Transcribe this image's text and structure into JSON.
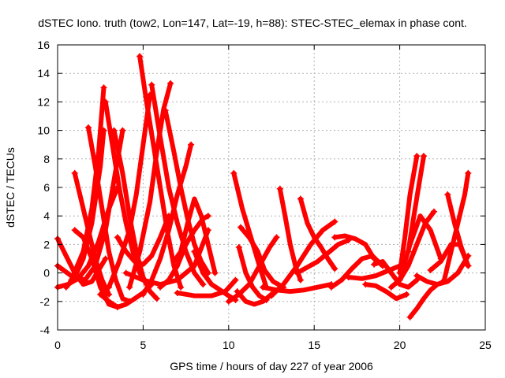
{
  "chart_data": {
    "type": "scatter",
    "title": "dSTEC Iono. truth (tow2, Lon=147, Lat=-19, h=88): STEC-STEC_elemax in phase cont.",
    "xlabel": "GPS time / hours of day 227 of year 2006",
    "ylabel": "dSTEC  / TECUs",
    "xlim": [
      0,
      25
    ],
    "ylim": [
      -4,
      16
    ],
    "xticks": [
      0,
      5,
      10,
      15,
      20,
      25
    ],
    "yticks": [
      -4,
      -2,
      0,
      2,
      4,
      6,
      8,
      10,
      12,
      14,
      16
    ],
    "grid": true,
    "marker": "plus",
    "color": "#ff0000",
    "series": [
      {
        "x": [
          0.0,
          0.5,
          1.0,
          1.5,
          2.0,
          2.5,
          2.8
        ],
        "y": [
          2.4,
          1.2,
          0.0,
          -0.8,
          -0.6,
          0.4,
          1.0
        ]
      },
      {
        "x": [
          0.0,
          0.6,
          1.2,
          1.8,
          2.4,
          3.0,
          3.5
        ],
        "y": [
          -1.0,
          -0.8,
          -0.4,
          0.5,
          2.2,
          4.5,
          6.0
        ]
      },
      {
        "x": [
          0.0,
          0.8,
          1.6,
          2.2,
          2.8,
          3.3,
          3.8
        ],
        "y": [
          0.5,
          -0.2,
          -0.5,
          0.5,
          3.0,
          6.5,
          10.0
        ]
      },
      {
        "x": [
          0.5,
          1.0,
          1.5,
          2.0,
          2.5,
          2.7
        ],
        "y": [
          -1.0,
          -0.3,
          1.0,
          3.5,
          7.5,
          10.0
        ]
      },
      {
        "x": [
          0.8,
          1.5,
          2.0,
          2.4,
          2.7
        ],
        "y": [
          -0.5,
          1.5,
          4.5,
          8.5,
          13.0
        ]
      },
      {
        "x": [
          1.0,
          1.4,
          1.8,
          2.2,
          2.6,
          3.0
        ],
        "y": [
          7.0,
          5.0,
          3.0,
          1.0,
          -0.5,
          -1.5
        ]
      },
      {
        "x": [
          1.8,
          2.2,
          2.6,
          3.0,
          3.4,
          3.8,
          4.2
        ],
        "y": [
          10.2,
          7.5,
          4.5,
          1.5,
          -0.5,
          -1.8,
          -2.0
        ]
      },
      {
        "x": [
          3.3,
          3.8,
          4.2,
          4.6,
          5.0,
          5.4,
          5.8
        ],
        "y": [
          10.0,
          7.0,
          4.0,
          1.5,
          -0.3,
          -1.3,
          -1.8
        ]
      },
      {
        "x": [
          2.8,
          3.2,
          3.6,
          4.0,
          4.4,
          4.8,
          5.2
        ],
        "y": [
          12.0,
          9.0,
          6.0,
          3.5,
          1.5,
          0.0,
          -0.8
        ]
      },
      {
        "x": [
          1.0,
          1.5,
          2.0,
          2.5,
          3.0,
          3.5
        ],
        "y": [
          3.0,
          2.5,
          1.0,
          -1.0,
          -2.2,
          -2.4
        ]
      },
      {
        "x": [
          2.5,
          3.0,
          3.5,
          4.0,
          4.5,
          5.0,
          5.5
        ],
        "y": [
          -1.5,
          -2.0,
          -2.4,
          -2.2,
          -1.8,
          -1.4,
          -0.8
        ]
      },
      {
        "x": [
          3.0,
          3.6,
          4.2,
          4.6,
          5.0,
          5.4
        ],
        "y": [
          -1.0,
          0.8,
          3.0,
          5.5,
          9.0,
          12.5
        ]
      },
      {
        "x": [
          3.5,
          4.0,
          4.5,
          5.0,
          5.5,
          6.0,
          6.5
        ],
        "y": [
          2.5,
          1.5,
          0.8,
          0.6,
          1.2,
          2.5,
          4.0
        ]
      },
      {
        "x": [
          4.8,
          5.2,
          5.6,
          6.0,
          6.4,
          6.8,
          7.2
        ],
        "y": [
          15.2,
          12.0,
          9.0,
          6.0,
          3.0,
          0.5,
          -1.0
        ]
      },
      {
        "x": [
          4.2,
          4.8,
          5.4,
          5.8,
          6.2,
          6.6
        ],
        "y": [
          -1.0,
          1.5,
          5.0,
          8.5,
          11.5,
          13.3
        ]
      },
      {
        "x": [
          5.5,
          6.0,
          6.5,
          7.0,
          7.5,
          8.0,
          8.5
        ],
        "y": [
          13.2,
          9.5,
          6.0,
          3.5,
          1.5,
          0.0,
          -0.8
        ]
      },
      {
        "x": [
          6.3,
          6.8,
          7.2,
          7.6,
          8.0,
          8.4,
          8.8
        ],
        "y": [
          11.4,
          8.5,
          6.0,
          3.8,
          2.0,
          0.8,
          0.0
        ]
      },
      {
        "x": [
          5.0,
          5.5,
          6.0,
          6.5,
          7.0,
          7.5,
          7.8
        ],
        "y": [
          -1.5,
          -0.5,
          1.0,
          3.0,
          5.5,
          7.5,
          9.0
        ]
      },
      {
        "x": [
          4.0,
          5.0,
          6.0,
          7.0,
          8.0,
          8.8
        ],
        "y": [
          0.0,
          -0.5,
          -0.8,
          -0.5,
          0.5,
          3.0
        ]
      },
      {
        "x": [
          6.0,
          6.5,
          7.0,
          7.5,
          8.0,
          8.5,
          8.8
        ],
        "y": [
          -1.0,
          -0.5,
          0.5,
          2.0,
          3.0,
          3.8,
          4.0
        ]
      },
      {
        "x": [
          6.8,
          7.2,
          7.6,
          8.0,
          8.4,
          8.8,
          9.2
        ],
        "y": [
          0.8,
          1.5,
          3.5,
          5.2,
          4.0,
          2.0,
          0.0
        ]
      },
      {
        "x": [
          8.0,
          8.5,
          9.0,
          9.5,
          10.0,
          10.4
        ],
        "y": [
          1.5,
          0.0,
          -0.8,
          -1.2,
          -1.6,
          -1.9
        ]
      },
      {
        "x": [
          7.0,
          8.0,
          9.0,
          9.8,
          10.4
        ],
        "y": [
          -1.4,
          -1.6,
          -1.6,
          -1.3,
          -0.5
        ]
      },
      {
        "x": [
          10.3,
          10.8,
          11.3,
          11.8,
          12.2
        ],
        "y": [
          7.0,
          4.5,
          2.5,
          0.5,
          -1.0
        ]
      },
      {
        "x": [
          10.0,
          10.6,
          11.2,
          11.8,
          12.4,
          12.8
        ],
        "y": [
          -2.0,
          -1.5,
          -0.8,
          0.5,
          1.8,
          2.5
        ]
      },
      {
        "x": [
          10.7,
          11.2,
          11.7,
          12.1,
          12.6,
          13.2
        ],
        "y": [
          3.2,
          2.5,
          1.5,
          0.2,
          -0.6,
          -1.0
        ]
      },
      {
        "x": [
          10.5,
          11.0,
          11.5,
          12.0,
          12.5
        ],
        "y": [
          -1.3,
          -2.0,
          -2.2,
          -2.0,
          -1.5
        ]
      },
      {
        "x": [
          10.6,
          11.0,
          11.4,
          11.8,
          12.2
        ],
        "y": [
          1.8,
          0.0,
          -1.0,
          -1.6,
          -1.9
        ]
      },
      {
        "x": [
          12.0,
          12.8,
          13.6,
          14.4,
          15.2,
          16.0
        ],
        "y": [
          -1.0,
          -1.2,
          -1.3,
          -1.2,
          -1.0,
          -0.8
        ]
      },
      {
        "x": [
          12.5,
          13.2,
          14.0,
          14.8,
          15.5,
          16.2
        ],
        "y": [
          -1.6,
          -0.8,
          0.5,
          2.0,
          3.0,
          3.6
        ]
      },
      {
        "x": [
          13.0,
          13.3,
          13.6,
          13.9,
          14.2
        ],
        "y": [
          5.9,
          4.0,
          2.0,
          0.5,
          -0.5
        ]
      },
      {
        "x": [
          14.2,
          14.6,
          15.0,
          15.4,
          15.8,
          16.2
        ],
        "y": [
          5.2,
          3.5,
          2.5,
          1.8,
          1.0,
          0.3
        ]
      },
      {
        "x": [
          14.0,
          14.6,
          15.2,
          15.8,
          16.4,
          17.0
        ],
        "y": [
          0.0,
          0.4,
          0.8,
          1.4,
          2.0,
          2.3
        ]
      },
      {
        "x": [
          16.0,
          16.6,
          17.2,
          17.8,
          18.4,
          19.0
        ],
        "y": [
          -1.0,
          -0.5,
          0.3,
          1.0,
          1.2,
          0.5
        ]
      },
      {
        "x": [
          16.2,
          16.8,
          17.4,
          18.0,
          18.5
        ],
        "y": [
          2.5,
          2.6,
          2.4,
          2.0,
          1.0
        ]
      },
      {
        "x": [
          17.0,
          17.8,
          18.6,
          19.4,
          20.0
        ],
        "y": [
          -0.3,
          -0.4,
          -0.2,
          0.2,
          0.5
        ]
      },
      {
        "x": [
          18.0,
          18.6,
          19.2,
          19.8,
          20.4
        ],
        "y": [
          -0.8,
          -0.9,
          -1.3,
          -1.8,
          -1.5
        ]
      },
      {
        "x": [
          18.5,
          19.0,
          19.5,
          20.0,
          20.5,
          21.0
        ],
        "y": [
          0.6,
          0.8,
          0.0,
          -0.8,
          -1.0,
          -0.5
        ]
      },
      {
        "x": [
          19.5,
          20.0,
          20.5,
          21.0,
          21.5,
          22.0
        ],
        "y": [
          -1.0,
          -0.5,
          0.5,
          2.0,
          3.5,
          4.3
        ]
      },
      {
        "x": [
          20.6,
          21.0,
          21.4,
          21.8,
          22.2,
          22.6
        ],
        "y": [
          -3.1,
          -2.5,
          -1.8,
          -1.2,
          -0.8,
          -0.6
        ]
      },
      {
        "x": [
          20.0,
          20.3,
          20.6,
          21.0
        ],
        "y": [
          0.0,
          2.5,
          5.5,
          8.2
        ]
      },
      {
        "x": [
          20.5,
          20.8,
          21.1,
          21.4
        ],
        "y": [
          1.5,
          3.8,
          6.0,
          8.2
        ]
      },
      {
        "x": [
          20.0,
          20.6,
          21.2,
          21.8,
          22.4
        ],
        "y": [
          -0.5,
          2.0,
          4.0,
          3.0,
          1.0
        ]
      },
      {
        "x": [
          21.0,
          21.6,
          22.2,
          22.8,
          23.4,
          24.0
        ],
        "y": [
          -0.2,
          -0.6,
          -0.8,
          -0.6,
          0.0,
          1.2
        ]
      },
      {
        "x": [
          22.8,
          23.2,
          23.6,
          24.0
        ],
        "y": [
          5.5,
          3.5,
          1.8,
          0.5
        ]
      },
      {
        "x": [
          22.6,
          23.0,
          23.4,
          23.8,
          24.0
        ],
        "y": [
          -0.5,
          1.5,
          3.5,
          5.5,
          7.0
        ]
      },
      {
        "x": [
          21.8,
          22.4,
          23.0,
          23.5,
          24.0
        ],
        "y": [
          0.2,
          0.8,
          2.0,
          2.0,
          0.5
        ]
      }
    ]
  }
}
